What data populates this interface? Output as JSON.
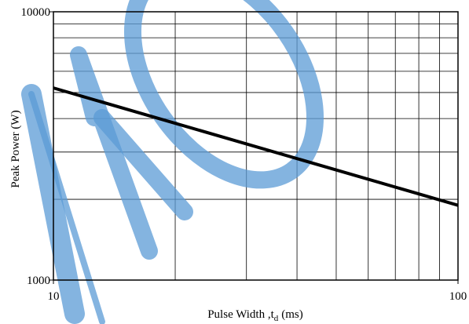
{
  "chart_data": {
    "type": "line",
    "x_label": "Pulse Width ,t",
    "x_label_sub": "d",
    "x_label_unit": "(ms)",
    "y_label": "Peak Power  (W)",
    "x_log": true,
    "y_log": true,
    "xlim": [
      10,
      100
    ],
    "ylim": [
      1000,
      10000
    ],
    "xticks": [
      10,
      100
    ],
    "yticks": [
      1000,
      10000
    ],
    "xgrid": [
      20,
      30,
      40,
      50,
      60,
      70,
      80,
      90
    ],
    "ygrid": [
      2000,
      3000,
      4000,
      5000,
      6000,
      7000,
      8000,
      9000
    ],
    "grid": true,
    "series": [
      {
        "color": "#000000",
        "x": [
          10,
          100
        ],
        "values": [
          5200,
          1900
        ]
      }
    ]
  }
}
